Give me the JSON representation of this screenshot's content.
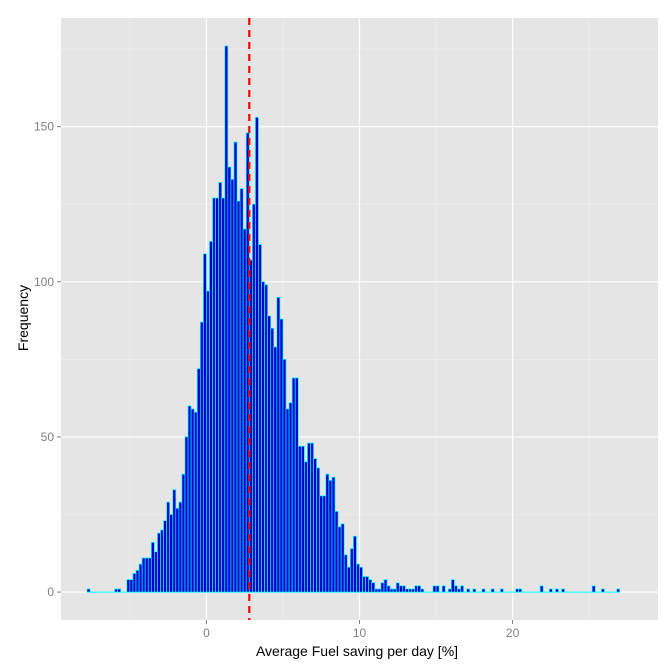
{
  "chart_data": {
    "type": "bar",
    "subtype": "histogram",
    "title": "",
    "xlabel": "Average Fuel saving per day [%]",
    "ylabel": "Frequency",
    "xlim": [
      -9.5,
      29.5
    ],
    "ylim": [
      -9,
      185
    ],
    "x_ticks": [
      0,
      10,
      20
    ],
    "y_ticks": [
      0,
      50,
      100,
      150
    ],
    "bin_width": 0.2,
    "grid": true,
    "panel_background": "#e5e5e5",
    "bar_fill": "#0000cc",
    "bar_outline": "#00ffff",
    "vline": {
      "x": 2.8,
      "color": "#ff0000",
      "style": "dashed"
    },
    "bins": [
      [
        -7.7,
        1
      ],
      [
        -5.9,
        1
      ],
      [
        -5.7,
        1
      ],
      [
        -5.1,
        4
      ],
      [
        -4.9,
        4
      ],
      [
        -4.7,
        6
      ],
      [
        -4.5,
        7
      ],
      [
        -4.3,
        9
      ],
      [
        -4.1,
        11
      ],
      [
        -3.9,
        11
      ],
      [
        -3.7,
        11
      ],
      [
        -3.5,
        16
      ],
      [
        -3.3,
        13
      ],
      [
        -3.1,
        19
      ],
      [
        -2.9,
        20
      ],
      [
        -2.7,
        23
      ],
      [
        -2.5,
        29
      ],
      [
        -2.3,
        25
      ],
      [
        -2.1,
        33
      ],
      [
        -1.9,
        27
      ],
      [
        -1.7,
        29
      ],
      [
        -1.5,
        38
      ],
      [
        -1.3,
        50
      ],
      [
        -1.1,
        60
      ],
      [
        -0.9,
        59
      ],
      [
        -0.7,
        58
      ],
      [
        -0.5,
        72
      ],
      [
        -0.3,
        87
      ],
      [
        -0.1,
        109
      ],
      [
        0.1,
        97
      ],
      [
        0.3,
        113
      ],
      [
        0.5,
        127
      ],
      [
        0.7,
        127
      ],
      [
        0.9,
        132
      ],
      [
        1.1,
        127
      ],
      [
        1.3,
        176
      ],
      [
        1.5,
        137
      ],
      [
        1.7,
        133
      ],
      [
        1.9,
        145
      ],
      [
        2.1,
        126
      ],
      [
        2.3,
        130
      ],
      [
        2.5,
        117
      ],
      [
        2.7,
        148
      ],
      [
        2.9,
        107
      ],
      [
        3.1,
        125
      ],
      [
        3.3,
        153
      ],
      [
        3.5,
        112
      ],
      [
        3.7,
        100
      ],
      [
        3.9,
        99
      ],
      [
        4.1,
        89
      ],
      [
        4.3,
        85
      ],
      [
        4.5,
        79
      ],
      [
        4.7,
        95
      ],
      [
        4.9,
        88
      ],
      [
        5.1,
        75
      ],
      [
        5.3,
        59
      ],
      [
        5.5,
        61
      ],
      [
        5.7,
        69
      ],
      [
        5.9,
        69
      ],
      [
        6.1,
        47
      ],
      [
        6.3,
        47
      ],
      [
        6.5,
        42
      ],
      [
        6.7,
        48
      ],
      [
        6.9,
        48
      ],
      [
        7.1,
        43
      ],
      [
        7.3,
        40
      ],
      [
        7.5,
        31
      ],
      [
        7.7,
        31
      ],
      [
        7.9,
        38
      ],
      [
        8.1,
        36
      ],
      [
        8.3,
        37
      ],
      [
        8.5,
        26
      ],
      [
        8.7,
        21
      ],
      [
        8.9,
        22
      ],
      [
        9.1,
        12
      ],
      [
        9.3,
        8
      ],
      [
        9.5,
        14
      ],
      [
        9.7,
        18
      ],
      [
        9.9,
        9
      ],
      [
        10.1,
        8
      ],
      [
        10.3,
        5
      ],
      [
        10.5,
        5
      ],
      [
        10.7,
        4
      ],
      [
        10.9,
        3
      ],
      [
        11.1,
        1
      ],
      [
        11.3,
        1
      ],
      [
        11.5,
        3
      ],
      [
        11.7,
        4
      ],
      [
        11.9,
        2
      ],
      [
        12.1,
        1
      ],
      [
        12.3,
        1
      ],
      [
        12.5,
        3
      ],
      [
        12.7,
        2
      ],
      [
        12.9,
        2
      ],
      [
        13.1,
        1
      ],
      [
        13.3,
        1
      ],
      [
        13.5,
        1
      ],
      [
        13.7,
        2
      ],
      [
        13.9,
        2
      ],
      [
        14.1,
        1
      ],
      [
        14.9,
        2
      ],
      [
        15.1,
        2
      ],
      [
        15.5,
        2
      ],
      [
        15.9,
        1
      ],
      [
        16.1,
        4
      ],
      [
        16.3,
        2
      ],
      [
        16.5,
        1
      ],
      [
        16.7,
        2
      ],
      [
        17.1,
        1
      ],
      [
        17.5,
        1
      ],
      [
        18.1,
        1
      ],
      [
        18.7,
        1
      ],
      [
        19.3,
        1
      ],
      [
        20.3,
        1
      ],
      [
        20.5,
        1
      ],
      [
        21.9,
        2
      ],
      [
        22.5,
        1
      ],
      [
        22.9,
        1
      ],
      [
        23.3,
        1
      ],
      [
        25.3,
        2
      ],
      [
        25.9,
        1
      ],
      [
        26.9,
        1
      ]
    ]
  }
}
